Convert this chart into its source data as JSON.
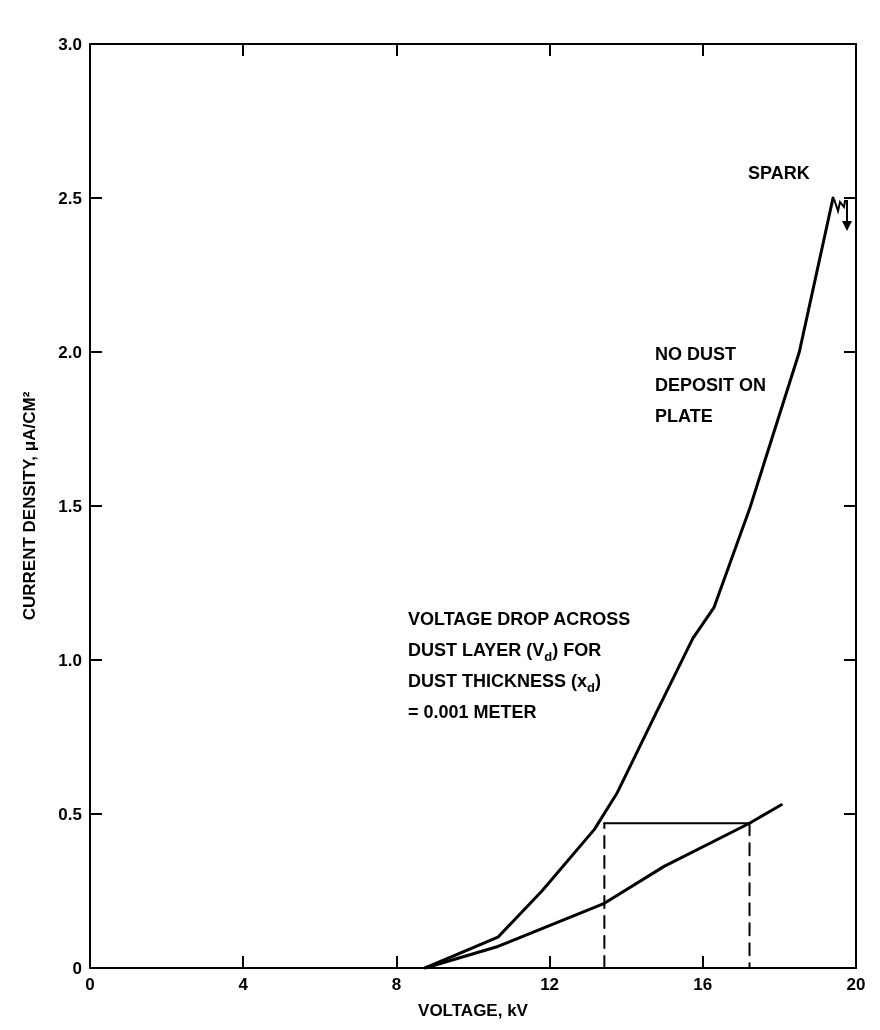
{
  "chart_data": {
    "type": "line",
    "xlabel": "VOLTAGE, kV",
    "ylabel": "CURRENT DENSITY, μA/CM²",
    "xlim": [
      0,
      20
    ],
    "xticks": [
      0,
      4,
      8,
      12,
      16,
      20
    ],
    "ylim": [
      0,
      3.0
    ],
    "yticks": [
      0,
      0.5,
      {
        "value": 1,
        "label": "1.0"
      },
      1.5,
      {
        "value": 2,
        "label": "2.0"
      },
      2.5,
      {
        "value": 3,
        "label": "3.0"
      }
    ],
    "grid": false,
    "legend": false,
    "marker": "none",
    "series": [
      {
        "name": "NO DUST DEPOSIT ON PLATE",
        "color": "#000000",
        "line_style": "solid",
        "x": [
          8.75,
          10.65,
          11.8,
          13.17,
          13.77,
          14.75,
          15.74,
          16.29,
          17.22,
          18.52,
          19.4
        ],
        "values": [
          0,
          0.1,
          0.25,
          0.45,
          0.57,
          0.82,
          1.07,
          1.17,
          1.49,
          2.0,
          2.5
        ]
      },
      {
        "name": "VOLTAGE DROP ACROSS DUST LAYER (V$_{d}$) FOR DUST THICKNESS (x$_{d}$) = 0.001 METER",
        "color": "#000000",
        "line_style": "solid",
        "x": [
          8.75,
          10.65,
          13.43,
          14.99,
          17.22,
          18.05
        ],
        "values": [
          0,
          0.07,
          0.21,
          0.33,
          0.47,
          0.53
        ]
      },
      {
        "color": "#000000",
        "line_style": "dashed",
        "x": [
          13.43,
          13.43
        ],
        "values": [
          0,
          0.47
        ]
      },
      {
        "color": "#000000",
        "line_style": "dashed",
        "x": [
          17.22,
          17.22
        ],
        "values": [
          0.47,
          0
        ]
      },
      {
        "color": "#000000",
        "line_style": "solid",
        "x": [
          13.43,
          17.22
        ],
        "values": [
          0.47,
          0.47
        ]
      }
    ],
    "annotations": [
      {
        "text": "SPARK",
        "x": 19.4,
        "y": 2.5
      }
    ]
  }
}
